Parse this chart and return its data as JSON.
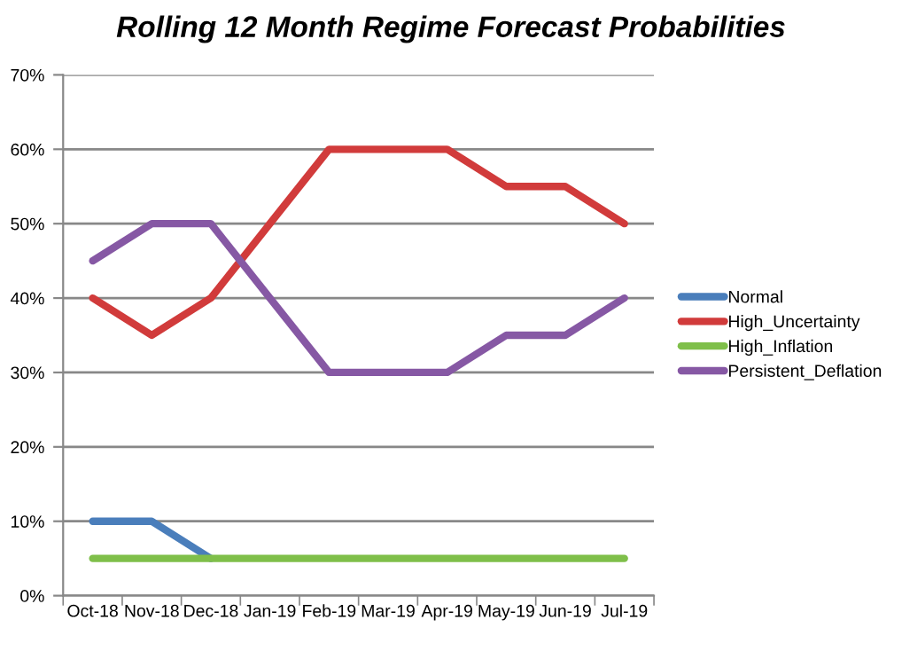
{
  "chart_data": {
    "type": "line",
    "title": "Rolling 12 Month Regime Forecast Probabilities",
    "categories": [
      "Oct-18",
      "Nov-18",
      "Dec-18",
      "Jan-19",
      "Feb-19",
      "Mar-19",
      "Apr-19",
      "May-19",
      "Jun-19",
      "Jul-19"
    ],
    "series": [
      {
        "name": "Normal",
        "color": "#4a7ebb",
        "values": [
          10,
          10,
          5,
          null,
          null,
          null,
          null,
          null,
          null,
          null
        ]
      },
      {
        "name": "High_Uncertainty",
        "color": "#d13b3b",
        "values": [
          40,
          35,
          40,
          50,
          60,
          60,
          60,
          55,
          55,
          50
        ]
      },
      {
        "name": "High_Inflation",
        "color": "#7fbf4a",
        "values": [
          5,
          5,
          5,
          5,
          5,
          5,
          5,
          5,
          5,
          5
        ]
      },
      {
        "name": "Persistent_Deflation",
        "color": "#8658a4",
        "values": [
          45,
          50,
          50,
          40,
          30,
          30,
          30,
          35,
          35,
          40
        ]
      }
    ],
    "ylim": [
      0,
      70
    ],
    "yticks": [
      {
        "value": 0,
        "label": "0%"
      },
      {
        "value": 10,
        "label": "10%"
      },
      {
        "value": 20,
        "label": "20%"
      },
      {
        "value": 30,
        "label": "30%"
      },
      {
        "value": 40,
        "label": "40%"
      },
      {
        "value": 50,
        "label": "50%"
      },
      {
        "value": 60,
        "label": "60%"
      },
      {
        "value": 70,
        "label": "70%"
      }
    ],
    "grid": "y",
    "legend": "right",
    "marker": "none",
    "line_style": "solid"
  }
}
